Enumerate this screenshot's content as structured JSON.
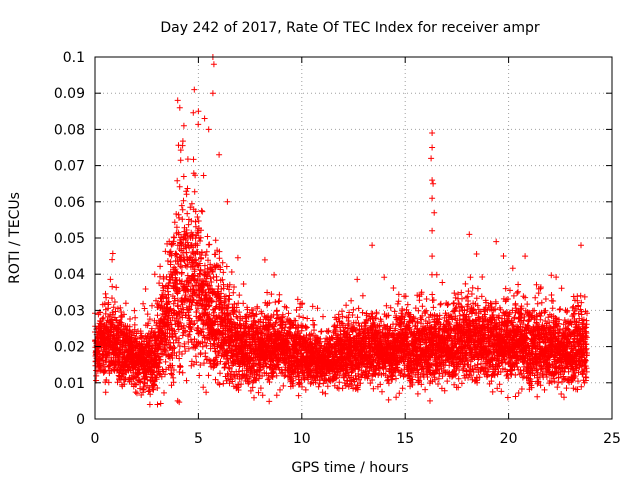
{
  "chart_data": {
    "type": "scatter",
    "title": "Day 242 of 2017, Rate Of TEC Index for receiver ampr",
    "xlabel": "GPS time / hours",
    "ylabel": "ROTI / TECUs",
    "xlim": [
      0,
      25
    ],
    "ylim": [
      0,
      0.1
    ],
    "x_ticks": [
      "0",
      "5",
      "10",
      "15",
      "20",
      "25"
    ],
    "y_ticks": [
      "0",
      "0.01",
      "0.02",
      "0.03",
      "0.04",
      "0.05",
      "0.06",
      "0.07",
      "0.08",
      "0.09",
      "0.1"
    ],
    "grid": true,
    "marker": "plus",
    "color": "#ff0000",
    "sampling_interval_hours": 0.01,
    "x_start": 0,
    "x_end": 23.8,
    "envelope": {
      "hours": [
        0,
        0.5,
        1,
        1.5,
        2,
        2.5,
        3,
        3.5,
        4,
        4.5,
        5,
        5.5,
        6,
        6.5,
        7,
        7.5,
        8,
        8.5,
        9,
        9.5,
        10,
        10.5,
        11,
        11.5,
        12,
        12.5,
        13,
        13.5,
        14,
        14.5,
        15,
        15.5,
        16,
        16.5,
        17,
        17.5,
        18,
        18.5,
        19,
        19.5,
        20,
        20.5,
        21,
        21.5,
        22,
        22.5,
        23,
        23.5,
        23.8
      ],
      "median": [
        0.019,
        0.022,
        0.021,
        0.018,
        0.017,
        0.016,
        0.019,
        0.028,
        0.036,
        0.04,
        0.036,
        0.03,
        0.026,
        0.022,
        0.02,
        0.019,
        0.02,
        0.021,
        0.02,
        0.019,
        0.018,
        0.017,
        0.016,
        0.017,
        0.018,
        0.018,
        0.019,
        0.02,
        0.019,
        0.019,
        0.021,
        0.019,
        0.02,
        0.02,
        0.021,
        0.02,
        0.022,
        0.022,
        0.021,
        0.021,
        0.022,
        0.021,
        0.02,
        0.02,
        0.02,
        0.019,
        0.019,
        0.02,
        0.019
      ],
      "spread": [
        0.005,
        0.007,
        0.007,
        0.006,
        0.005,
        0.006,
        0.008,
        0.011,
        0.016,
        0.017,
        0.016,
        0.012,
        0.01,
        0.008,
        0.007,
        0.007,
        0.007,
        0.007,
        0.006,
        0.006,
        0.006,
        0.005,
        0.005,
        0.005,
        0.006,
        0.006,
        0.006,
        0.006,
        0.006,
        0.006,
        0.007,
        0.006,
        0.007,
        0.007,
        0.007,
        0.007,
        0.007,
        0.007,
        0.007,
        0.007,
        0.007,
        0.007,
        0.007,
        0.007,
        0.007,
        0.007,
        0.007,
        0.007,
        0.006
      ]
    },
    "notable_points": [
      {
        "x": 4.0,
        "y": 0.088
      },
      {
        "x": 4.1,
        "y": 0.086
      },
      {
        "x": 4.3,
        "y": 0.081
      },
      {
        "x": 4.8,
        "y": 0.091
      },
      {
        "x": 5.0,
        "y": 0.085
      },
      {
        "x": 5.3,
        "y": 0.083
      },
      {
        "x": 5.5,
        "y": 0.08
      },
      {
        "x": 5.7,
        "y": 0.1
      },
      {
        "x": 5.75,
        "y": 0.098
      },
      {
        "x": 5.7,
        "y": 0.09
      },
      {
        "x": 6.0,
        "y": 0.073
      },
      {
        "x": 6.4,
        "y": 0.06
      },
      {
        "x": 13.4,
        "y": 0.048
      },
      {
        "x": 16.3,
        "y": 0.079
      },
      {
        "x": 16.3,
        "y": 0.075
      },
      {
        "x": 16.25,
        "y": 0.072
      },
      {
        "x": 16.3,
        "y": 0.066
      },
      {
        "x": 16.35,
        "y": 0.065
      },
      {
        "x": 16.3,
        "y": 0.061
      },
      {
        "x": 16.4,
        "y": 0.057
      },
      {
        "x": 16.3,
        "y": 0.052
      },
      {
        "x": 16.3,
        "y": 0.045
      },
      {
        "x": 16.2,
        "y": 0.005
      },
      {
        "x": 18.1,
        "y": 0.051
      },
      {
        "x": 19.4,
        "y": 0.049
      },
      {
        "x": 20.8,
        "y": 0.045
      },
      {
        "x": 23.5,
        "y": 0.048
      },
      {
        "x": 4.0,
        "y": 0.005
      }
    ]
  }
}
